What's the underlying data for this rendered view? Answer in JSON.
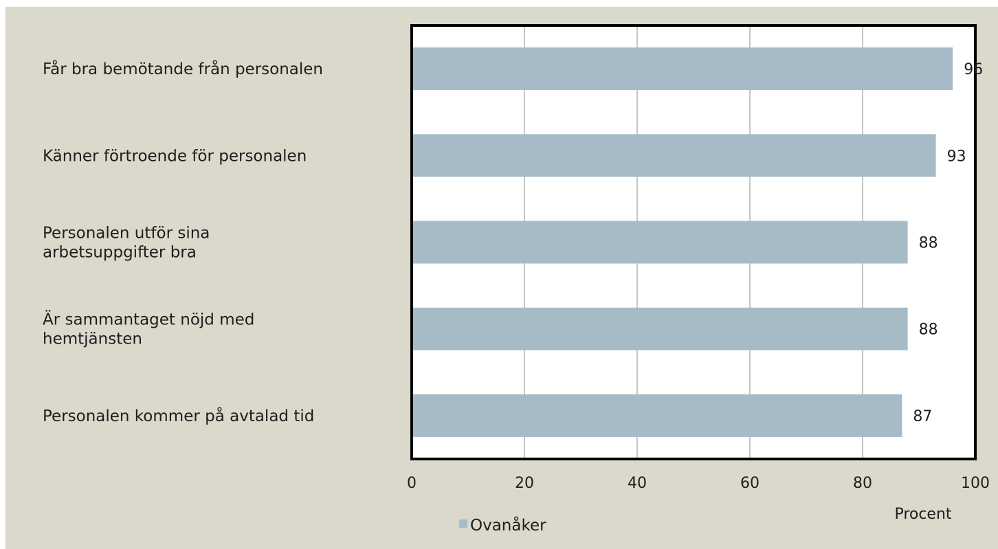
{
  "chart_data": {
    "type": "bar",
    "orientation": "horizontal",
    "categories": [
      [
        "Får bra bemötande från personalen"
      ],
      [
        "Känner förtroende för personalen"
      ],
      [
        "Personalen utför sina",
        "arbetsuppgifter bra"
      ],
      [
        "Är sammantaget nöjd med",
        "hemtjänsten"
      ],
      [
        "Personalen kommer på avtalad tid"
      ]
    ],
    "series": [
      {
        "name": "Ovanåker",
        "values": [
          96,
          93,
          88,
          88,
          87
        ]
      }
    ],
    "xlabel": "Procent",
    "xlim": [
      0,
      100
    ],
    "xticks": [
      0,
      20,
      40,
      60,
      80,
      100
    ],
    "grid": true,
    "legend_position": "bottom-left",
    "colors": {
      "bar": "#a6bbc6",
      "background": "#dbd8cc",
      "plot_background": "#ffffff",
      "grid": "#8c8c8c",
      "frame": "#000000"
    }
  }
}
